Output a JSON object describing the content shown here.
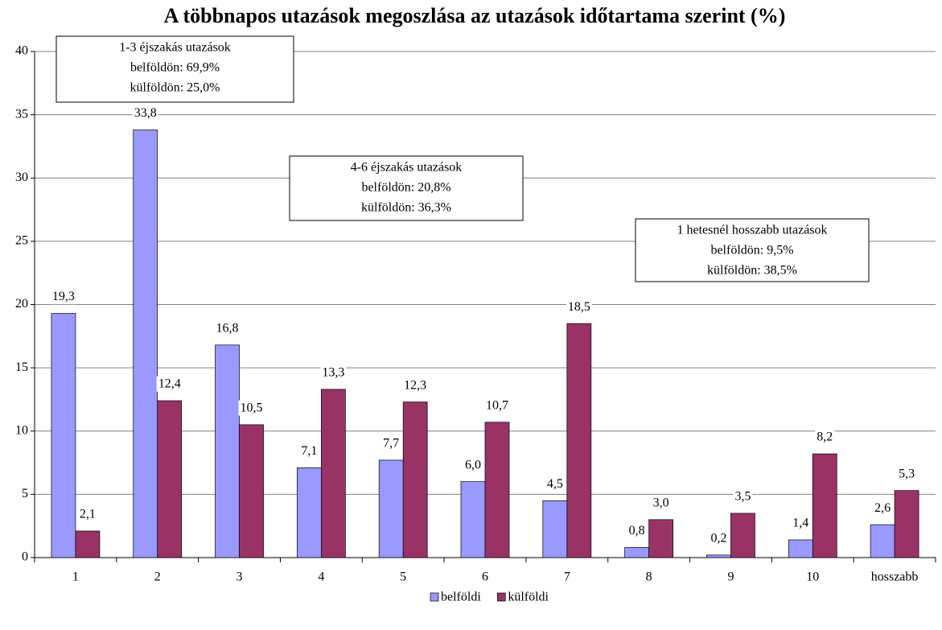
{
  "chart_data": {
    "type": "bar",
    "title": "A többnapos utazások megoszlása az utazások időtartama szerint (%)",
    "categories": [
      "1",
      "2",
      "3",
      "4",
      "5",
      "6",
      "7",
      "8",
      "9",
      "10",
      "hosszabb"
    ],
    "series": [
      {
        "name": "belföldi",
        "color": "#9999ff",
        "values": [
          19.3,
          33.8,
          16.8,
          7.1,
          7.7,
          6.0,
          4.5,
          0.8,
          0.2,
          1.4,
          2.6
        ],
        "value_labels": [
          "19,3",
          "33,8",
          "16,8",
          "7,1",
          "7,7",
          "6,0",
          "4,5",
          "0,8",
          "0,2",
          "1,4",
          "2,6"
        ]
      },
      {
        "name": "külföldi",
        "color": "#993366",
        "values": [
          2.1,
          12.4,
          10.5,
          13.3,
          12.3,
          10.7,
          18.5,
          3.0,
          3.5,
          8.2,
          5.3
        ],
        "value_labels": [
          "2,1",
          "12,4",
          "10,5",
          "13,3",
          "12,3",
          "10,7",
          "18,5",
          "3,0",
          "3,5",
          "8,2",
          "5,3"
        ]
      }
    ],
    "ylim": [
      0,
      40
    ],
    "yticks": [
      0,
      5,
      10,
      15,
      20,
      25,
      30,
      35,
      40
    ],
    "grid": true,
    "legend": "bottom",
    "annotations": [
      {
        "lines": [
          "1-3 éjszakás utazások",
          "belföldön: 69,9%",
          "külföldön: 25,0%"
        ]
      },
      {
        "lines": [
          "4-6 éjszakás utazások",
          "belföldön: 20,8%",
          "külföldön: 36,3%"
        ]
      },
      {
        "lines": [
          "1 hetesnél hosszabb utazások",
          "belföldön: 9,5%",
          "külföldön: 38,5%"
        ]
      }
    ]
  }
}
